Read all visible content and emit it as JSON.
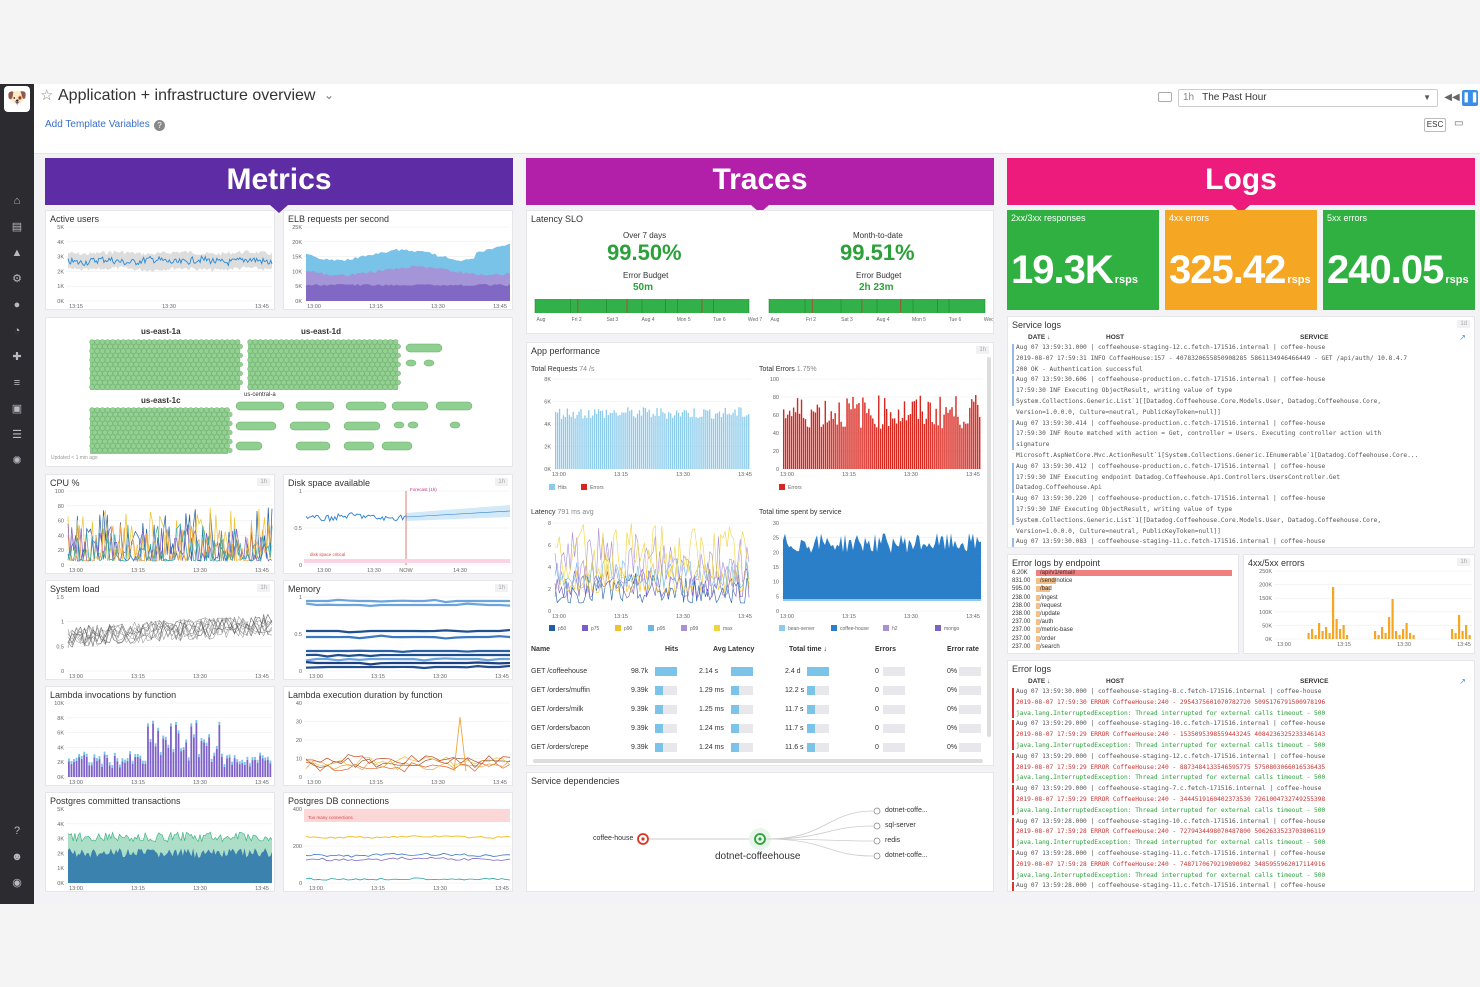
{
  "header": {
    "title": "Application + infrastructure overview",
    "template_vars": "Add Template Variables",
    "time_prefix": "1h",
    "time_label": "The Past Hour",
    "esc": "ESC"
  },
  "columns": {
    "metrics": {
      "label": "Metrics",
      "color": "#5e2ca5"
    },
    "traces": {
      "label": "Traces",
      "color": "#b21fa8"
    },
    "logs": {
      "label": "Logs",
      "color": "#ed1b7c"
    }
  },
  "metrics": {
    "active_users": {
      "title": "Active users",
      "yticks": [
        "5K",
        "4K",
        "3K",
        "2K",
        "1K",
        "0K"
      ],
      "xticks": [
        "13:15",
        "13:30",
        "13:45"
      ]
    },
    "elb": {
      "title": "ELB requests per second",
      "yticks": [
        "25K",
        "20K",
        "15K",
        "10K",
        "5K",
        "0K"
      ],
      "xticks": [
        "13:00",
        "13:15",
        "13:30",
        "13:45"
      ]
    },
    "hostmap": {
      "zones": [
        "us-east-1a",
        "us-east-1d",
        "us-east-1c",
        "us-central-a"
      ],
      "updated": "Updated < 1 min ago"
    },
    "cpu": {
      "title": "CPU %",
      "tag": "1h",
      "yticks": [
        "100",
        "80",
        "60",
        "40",
        "20",
        "0"
      ],
      "xticks": [
        "13:00",
        "13:15",
        "13:30",
        "13:45"
      ]
    },
    "disk": {
      "title": "Disk space available",
      "tag": "1h",
      "forecast": "Forecast (1h)",
      "critical": "disk space critical",
      "yticks": [
        "1",
        "0.5",
        "0"
      ],
      "xticks": [
        "13:00",
        "13:30",
        "NOW",
        "14:30"
      ]
    },
    "sysload": {
      "title": "System load",
      "tag": "1h",
      "yticks": [
        "1.5",
        "1",
        "0.5",
        "0"
      ],
      "xticks": [
        "13:00",
        "13:15",
        "13:30",
        "13:45"
      ]
    },
    "memory": {
      "title": "Memory",
      "tag": "1h",
      "yticks": [
        "1",
        "0.5",
        "0"
      ],
      "xticks": [
        "13:00",
        "13:15",
        "13:30",
        "13:45"
      ]
    },
    "lambda_inv": {
      "title": "Lambda invocations by function",
      "yticks": [
        "10K",
        "8K",
        "6K",
        "4K",
        "2K",
        "0K"
      ],
      "xticks": [
        "13:00",
        "13:15",
        "13:30",
        "13:45"
      ]
    },
    "lambda_dur": {
      "title": "Lambda execution duration by function",
      "yticks": [
        "40",
        "30",
        "20",
        "10",
        "0"
      ],
      "xticks": [
        "13:00",
        "13:15",
        "13:30",
        "13:45"
      ]
    },
    "pg_tx": {
      "title": "Postgres committed transactions",
      "yticks": [
        "5K",
        "4K",
        "3K",
        "2K",
        "1K",
        "0K"
      ],
      "xticks": [
        "13:00",
        "13:15",
        "13:30",
        "13:45"
      ]
    },
    "pg_conn": {
      "title": "Postgres DB connections",
      "warn": "Too many connections",
      "yticks": [
        "400",
        "200",
        "0"
      ],
      "xticks": [
        "13:00",
        "13:15",
        "13:30",
        "13:45"
      ]
    }
  },
  "traces": {
    "slo": {
      "title": "Latency SLO",
      "left": {
        "period": "Over 7 days",
        "value": "99.50%",
        "budget_label": "Error Budget",
        "budget": "50m"
      },
      "right": {
        "period": "Month-to-date",
        "value": "99.51%",
        "budget_label": "Error Budget",
        "budget": "2h 23m"
      },
      "left_ticks": [
        "Aug",
        "Fri 2",
        "Sat 3",
        "Aug 4",
        "Mon 5",
        "Tue 6",
        "Wed 7"
      ],
      "right_ticks": [
        "Aug",
        "Fri 2",
        "Sat 3",
        "Aug 4",
        "Mon 5",
        "Tue 6",
        "Wed 7"
      ]
    },
    "perf": {
      "title": "App performance",
      "tag": "1h",
      "total_requests": "Total Requests",
      "total_requests_val": "74 /s",
      "total_errors": "Total Errors",
      "total_errors_val": "1.75%",
      "req_yticks": [
        "8K",
        "6K",
        "4K",
        "2K",
        "0K"
      ],
      "err_yticks": [
        "100",
        "80",
        "60",
        "40",
        "20",
        "0"
      ],
      "xticks": [
        "13:00",
        "13:15",
        "13:30",
        "13:45"
      ],
      "legend_hits": "Hits",
      "legend_errors": "Errors",
      "latency": "Latency",
      "latency_val": "791 ms avg",
      "time_spent": "Total time spent by service",
      "lat_yticks": [
        "8",
        "6",
        "4",
        "2",
        "0"
      ],
      "ts_yticks": [
        "30",
        "25",
        "20",
        "15",
        "10",
        "5",
        "0"
      ],
      "lat_legend": [
        "p50",
        "p75",
        "p90",
        "p95",
        "p99",
        "max"
      ],
      "ts_legend": [
        "bean-server",
        "coffee-house",
        "h2",
        "mongo"
      ],
      "table": {
        "cols": [
          "Name",
          "Hits",
          "Avg Latency",
          "Total time ↓",
          "Errors",
          "Error rate"
        ],
        "rows": [
          {
            "name": "GET /coffeehouse",
            "hits": "98.7k",
            "lat": "2.14 s",
            "tt": "2.4 d",
            "err": "0",
            "rate": "0%"
          },
          {
            "name": "GET /orders/muffin",
            "hits": "9.39k",
            "lat": "1.29 ms",
            "tt": "12.2 s",
            "err": "0",
            "rate": "0%"
          },
          {
            "name": "GET /orders/milk",
            "hits": "9.39k",
            "lat": "1.25 ms",
            "tt": "11.7 s",
            "err": "0",
            "rate": "0%"
          },
          {
            "name": "GET /orders/bacon",
            "hits": "9.39k",
            "lat": "1.24 ms",
            "tt": "11.7 s",
            "err": "0",
            "rate": "0%"
          },
          {
            "name": "GET /orders/crepe",
            "hits": "9.39k",
            "lat": "1.24 ms",
            "tt": "11.6 s",
            "err": "0",
            "rate": "0%"
          }
        ]
      }
    },
    "deps": {
      "title": "Service dependencies",
      "source": "coffee-house",
      "center": "dotnet-coffeehouse",
      "targets": [
        "dotnet-coffe...",
        "sql-server",
        "redis",
        "dotnet-coffe..."
      ]
    }
  },
  "logs": {
    "tiles": [
      {
        "title": "2xx/3xx responses",
        "value": "19.3K",
        "unit": "rsps",
        "color": "#2fb041"
      },
      {
        "title": "4xx errors",
        "value": "325.42",
        "unit": "rsps",
        "color": "#f5a623"
      },
      {
        "title": "5xx errors",
        "value": "240.05",
        "unit": "rsps",
        "color": "#2fb041"
      }
    ],
    "service_logs": {
      "title": "Service logs",
      "tag": "1d",
      "cols": [
        "DATE ↓",
        "HOST",
        "SERVICE"
      ],
      "rows": [
        "Aug 07 13:59:31.000 | coffeehouse-staging-12.c.fetch-171516.internal | coffee-house",
        "2019-08-07 17:59:31 INFO CoffeeHouse:157 - 4078320655850908285 5861134946466449 - GET /api/auth/ 10.8.4.7",
        "200 OK - Authentication successful",
        "Aug 07 13:59:30.606 | coffeehouse-production.c.fetch-171516.internal | coffee-house",
        "17:59:30 INF Executing ObjectResult, writing value of type",
        "System.Collections.Generic.List`1[[Datadog.Coffeehouse.Core.Models.User, Datadog.Coffeehouse.Core,",
        "Version=1.0.0.0, Culture=neutral, PublicKeyToken=null]]",
        "Aug 07 13:59:30.414 | coffeehouse-production.c.fetch-171516.internal | coffee-house",
        "17:59:30 INF Route matched with action = Get, controller = Users. Executing controller action with",
        "signature",
        "Microsoft.AspNetCore.Mvc.ActionResult`1[System.Collections.Generic.IEnumerable`1[Datadog.Coffeehouse.Core...",
        "Aug 07 13:59:30.412 | coffeehouse-production.c.fetch-171516.internal | coffee-house",
        "17:59:30 INF Executing endpoint Datadog.Coffeehouse.Api.Controllers.UsersController.Get",
        "Datadog.Coffeehouse.Api",
        "Aug 07 13:59:30.220 | coffeehouse-production.c.fetch-171516.internal | coffee-house",
        "17:59:30 INF Executing ObjectResult, writing value of type",
        "System.Collections.Generic.List`1[[Datadog.Coffeehouse.Core.Models.User, Datadog.Coffeehouse.Core,",
        "Version=1.0.0.0, Culture=neutral, PublicKeyToken=null]]",
        "Aug 07 13:59:30.083 | coffeehouse-staging-11.c.fetch-171516.internal | coffee-house"
      ]
    },
    "endpoint_errors": {
      "title": "Error logs by endpoint",
      "rows": [
        {
          "count": "6.20K",
          "path": "/api/v1/email/"
        },
        {
          "count": "831.00",
          "path": "/send/notice"
        },
        {
          "count": "595.00",
          "path": "/bad"
        },
        {
          "count": "238.00",
          "path": "/ingest"
        },
        {
          "count": "238.00",
          "path": "/request"
        },
        {
          "count": "238.00",
          "path": "/update"
        },
        {
          "count": "237.00",
          "path": "/auth"
        },
        {
          "count": "237.00",
          "path": "/metric-base"
        },
        {
          "count": "237.00",
          "path": "/order"
        },
        {
          "count": "237.00",
          "path": "/search"
        }
      ]
    },
    "err_4xx5xx": {
      "title": "4xx/5xx errors",
      "tag": "1h",
      "yticks": [
        "250K",
        "200K",
        "150K",
        "100K",
        "50K",
        "0K"
      ],
      "xticks": [
        "13:00",
        "13:15",
        "13:30",
        "13:45"
      ]
    },
    "error_logs": {
      "title": "Error logs",
      "cols": [
        "DATE ↓",
        "HOST",
        "SERVICE"
      ],
      "rows": [
        "Aug 07 13:59:30.000 | coffeehouse-staging-8.c.fetch-171516.internal | coffee-house",
        "2019-08-07 17:59:30 ERROR CoffeeHouse:240 - 2954375601070782720 5095176791500978196",
        "java.lang.InterruptedException: Thread interrupted for external calls timeout - 500",
        "Aug 07 13:59:29.000 | coffeehouse-staging-10.c.fetch-171516.internal | coffee-house",
        "2019-08-07 17:59:29 ERROR CoffeeHouse:240 - 1535095398559443245 4084236325233346143",
        "java.lang.InterruptedException: Thread interrupted for external calls timeout - 500",
        "Aug 07 13:59:29.000 | coffeehouse-staging-12.c.fetch-171516.internal | coffee-house",
        "2019-08-07 17:59:29 ERROR CoffeeHouse:240 - 8873484133546595775 5750803066016536435",
        "java.lang.InterruptedException: Thread interrupted for external calls timeout - 500",
        "Aug 07 13:59:29.000 | coffeehouse-staging-7.c.fetch-171516.internal | coffee-house",
        "2019-08-07 17:59:29 ERROR CoffeeHouse:240 - 3444519160402373530 7261004732749255398",
        "java.lang.InterruptedException: Thread interrupted for external calls timeout - 500",
        "Aug 07 13:59:28.000 | coffeehouse-staging-10.c.fetch-171516.internal | coffee-house",
        "2019-08-07 17:59:28 ERROR CoffeeHouse:240 - 7279434498070487800 5062633523703806119",
        "java.lang.InterruptedException: Thread interrupted for external calls timeout - 500",
        "Aug 07 13:59:28.000 | coffeehouse-staging-11.c.fetch-171516.internal | coffee-house",
        "2019-08-07 17:59:28 ERROR CoffeeHouse:240 - 7487170679219890982 3485955962017114916",
        "java.lang.InterruptedException: Thread interrupted for external calls timeout - 500",
        "Aug 07 13:59:28.000 | coffeehouse-staging-11.c.fetch-171516.internal | coffee-house"
      ]
    }
  }
}
